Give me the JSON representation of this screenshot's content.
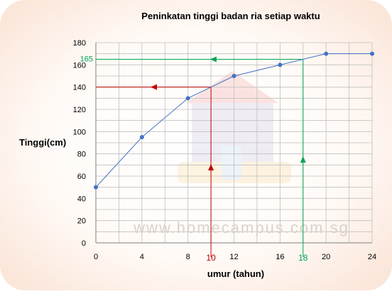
{
  "chart_data": {
    "type": "line",
    "title": "Peninkatan tinggi badan ria setiap waktu",
    "xlabel": "umur (tahun)",
    "ylabel": "Tinggi(cm)",
    "x": [
      0,
      4,
      8,
      12,
      16,
      20,
      24
    ],
    "xlim": [
      0,
      24
    ],
    "ylim": [
      0,
      180
    ],
    "x_ticks": [
      0,
      4,
      8,
      12,
      16,
      20,
      24
    ],
    "y_ticks": [
      0,
      20,
      40,
      60,
      80,
      100,
      120,
      140,
      160,
      180
    ],
    "grid": true,
    "series": [
      {
        "values": [
          50,
          95,
          130,
          150,
          160,
          170,
          170
        ],
        "color": "#4472c4"
      }
    ],
    "annotations": [
      {
        "x": 10,
        "y": 140,
        "x_label": "10",
        "color": "#c00000"
      },
      {
        "x": 18,
        "y": 165,
        "x_label": "18",
        "y_label": "165",
        "color": "#00a651"
      }
    ],
    "watermark": "www.homecampus.com.sg",
    "colors": {
      "background": "#fdf1ea",
      "grid": "#bfbfbf",
      "axis": "#7f7f7f",
      "line": "#4472c4"
    }
  }
}
